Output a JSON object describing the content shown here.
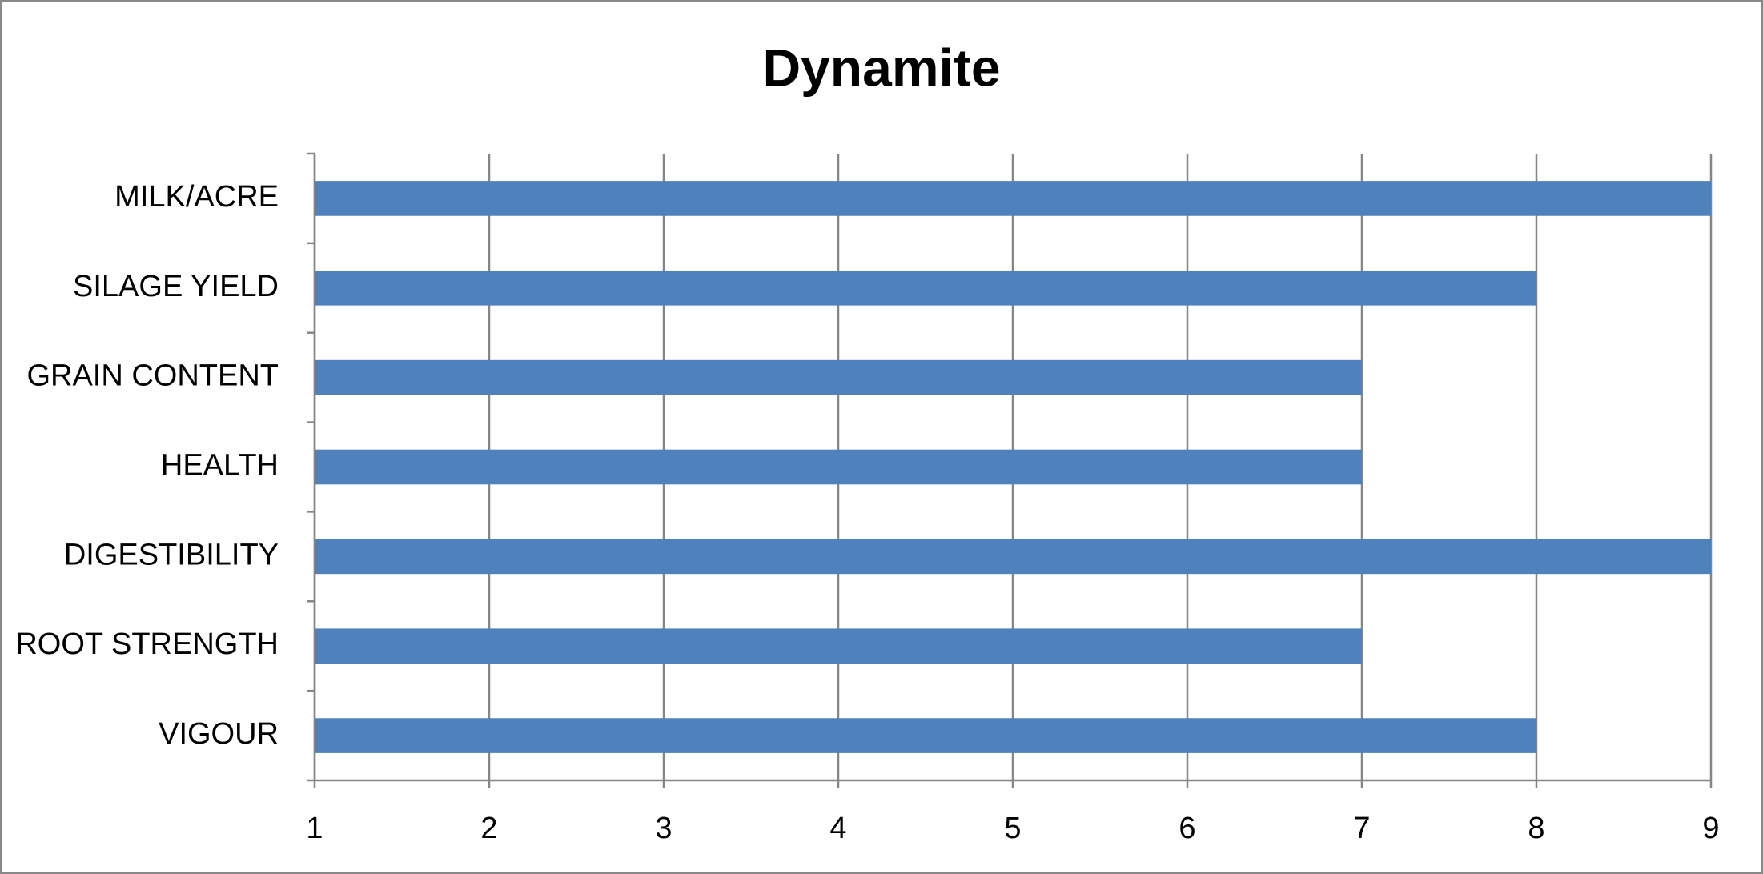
{
  "chart_data": {
    "type": "bar",
    "orientation": "horizontal",
    "title": "Dynamite",
    "categories": [
      "MILK/ACRE",
      "SILAGE YIELD",
      "GRAIN CONTENT",
      "HEALTH",
      "DIGESTIBILITY",
      "ROOT STRENGTH",
      "VIGOUR"
    ],
    "values": [
      9,
      8,
      7,
      7,
      9,
      7,
      8
    ],
    "color": "#4f81bd",
    "xlim": [
      1,
      9
    ],
    "xticks": [
      1,
      2,
      3,
      4,
      5,
      6,
      7,
      8,
      9
    ],
    "grid": true
  }
}
